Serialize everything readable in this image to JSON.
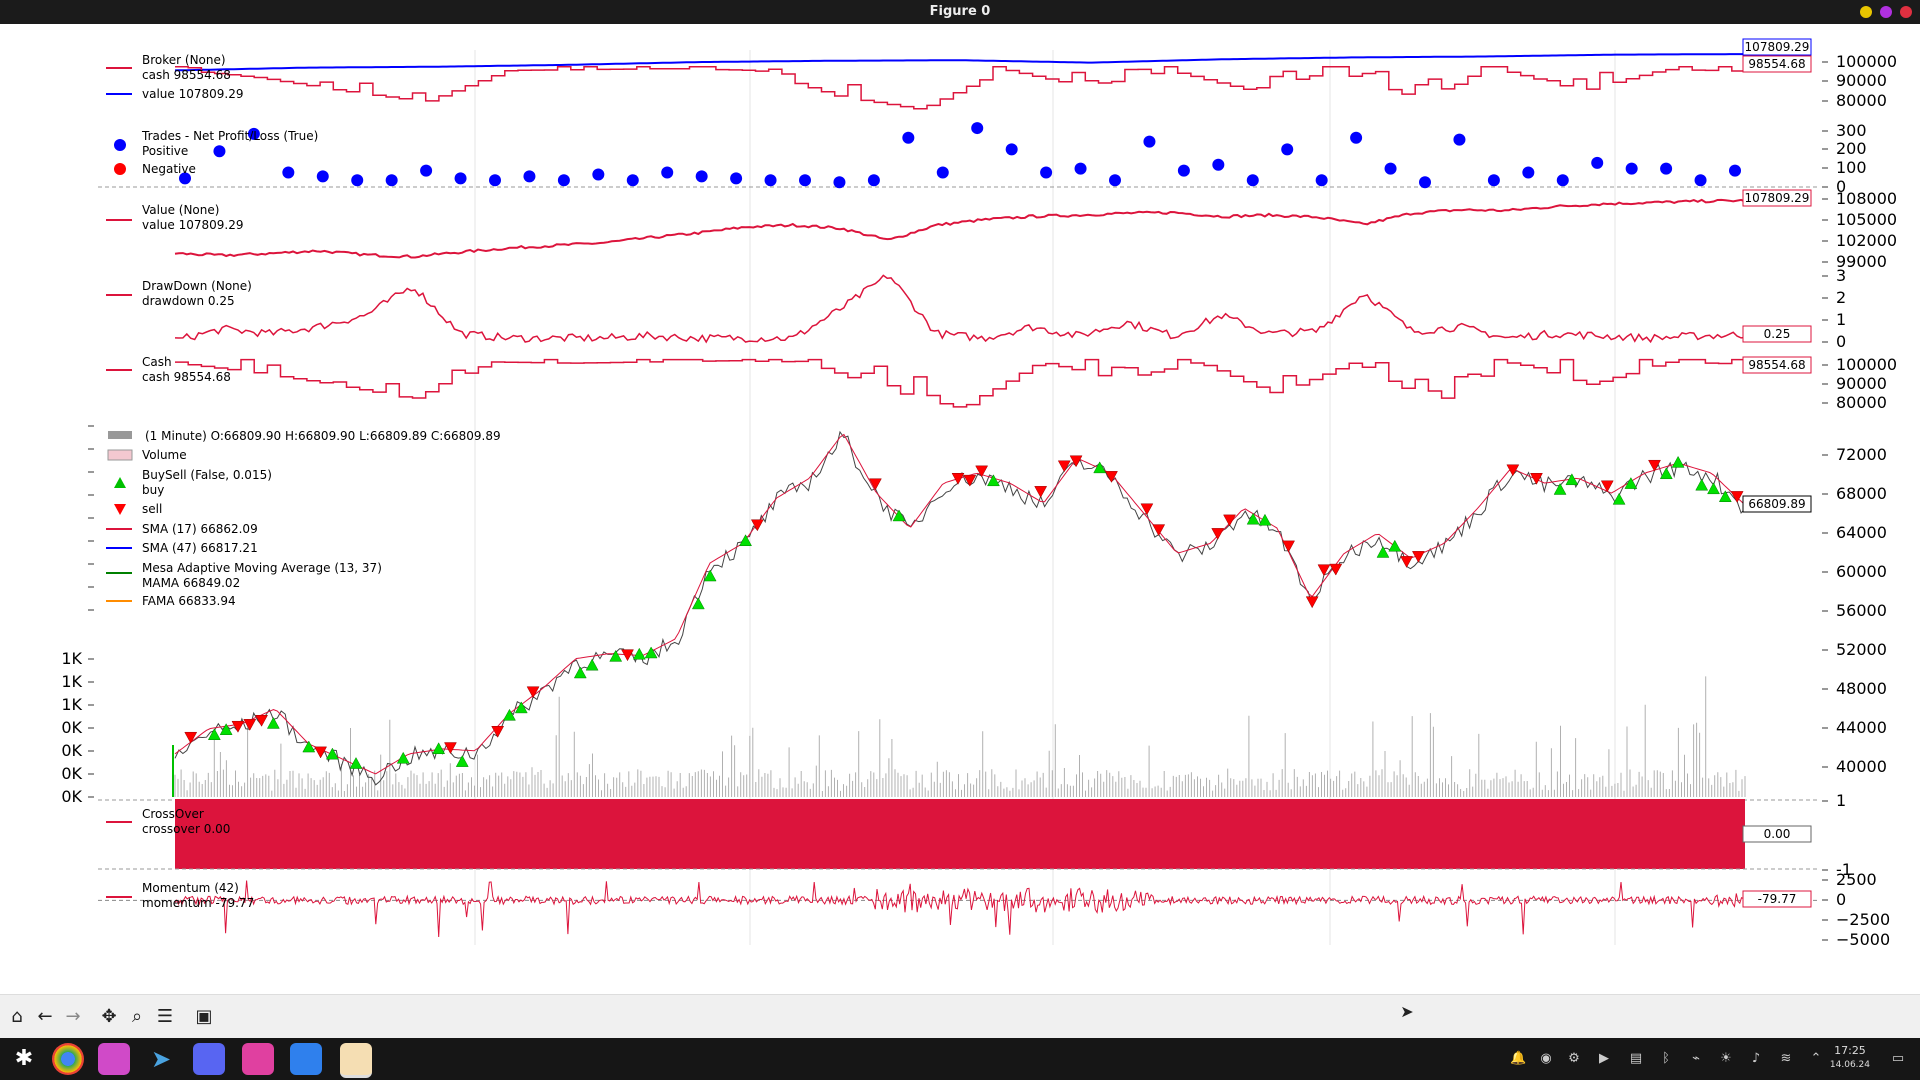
{
  "window": {
    "title": "Figure 0"
  },
  "colors": {
    "red": "#dc143c",
    "blue": "#0000ff",
    "green": "#00c000",
    "orange": "#ff8c00",
    "bg": "#ffffff"
  },
  "panels": {
    "broker": {
      "legend": [
        "Broker (None)",
        "cash 98554.68",
        "value 107809.29"
      ],
      "badges": [
        "107809.29",
        "98554.68"
      ],
      "yticks": [
        "100000",
        "90000",
        "80000"
      ]
    },
    "trades": {
      "legend": [
        "Trades - Net Profit/Loss (True)",
        "Positive",
        "Negative"
      ],
      "yticks": [
        "300",
        "200",
        "100",
        "0"
      ]
    },
    "value": {
      "legend": [
        "Value (None)",
        "value 107809.29"
      ],
      "badge": "107809.29",
      "yticks": [
        "108000",
        "105000",
        "102000",
        "99000"
      ]
    },
    "drawdown": {
      "legend": [
        "DrawDown (None)",
        "drawdown 0.25"
      ],
      "badge": "0.25",
      "yticks": [
        "3",
        "2",
        "1",
        "0"
      ]
    },
    "cash": {
      "legend": [
        "Cash",
        "cash 98554.68"
      ],
      "badge": "98554.68",
      "yticks": [
        "100000",
        "90000",
        "80000"
      ]
    },
    "price": {
      "legend": [
        "(1 Minute) O:66809.90 H:66809.90 L:66809.89 C:66809.89",
        "Volume",
        "BuySell (False, 0.015)",
        "buy",
        "sell",
        "SMA (17) 66862.09",
        "SMA (47) 66817.21",
        "Mesa Adaptive Moving Average (13, 37)",
        "MAMA 66849.02",
        "FAMA 66833.94"
      ],
      "badge": "66809.89",
      "yticks": [
        "72000",
        "68000",
        "64000",
        "60000",
        "56000",
        "52000",
        "48000",
        "44000",
        "40000"
      ],
      "vol_yticks": [
        "1K",
        "1K",
        "1K",
        "0K",
        "0K",
        "0K",
        "0K"
      ]
    },
    "crossover": {
      "legend": [
        "CrossOver",
        "crossover 0.00"
      ],
      "badge": "0.00",
      "yticks": [
        "1",
        "-1"
      ]
    },
    "momentum": {
      "legend": [
        "Momentum (42)",
        "momentum -79.77"
      ],
      "badge": "-79.77",
      "yticks": [
        "2500",
        "0",
        "−2500",
        "−5000"
      ]
    }
  },
  "chart_data": [
    {
      "type": "line",
      "title": "Broker (None)",
      "series": [
        {
          "name": "cash",
          "last": 98554.68
        },
        {
          "name": "value",
          "last": 107809.29
        }
      ],
      "ylim": [
        75000,
        110000
      ]
    },
    {
      "type": "scatter",
      "title": "Trades - Net Profit/Loss (True)",
      "series": [
        {
          "name": "Positive",
          "values": [
            50,
            190,
            280,
            80,
            60,
            40,
            40,
            90,
            50,
            40,
            60,
            40,
            70,
            40,
            80,
            60,
            50,
            40,
            40,
            30,
            40,
            260,
            80,
            310,
            200,
            80,
            100,
            40,
            240,
            90,
            120,
            40,
            200,
            40,
            260,
            100,
            30,
            250,
            40,
            80,
            40,
            130,
            100,
            100,
            40,
            90
          ]
        },
        {
          "name": "Negative",
          "values": []
        }
      ],
      "ylim": [
        0,
        300
      ]
    },
    {
      "type": "line",
      "title": "Value (None)",
      "series": [
        {
          "name": "value",
          "values": [
            99800,
            99500,
            99800,
            100200,
            99600,
            99300,
            100000,
            100600,
            101000,
            101400,
            102200,
            102900,
            103800,
            104100,
            103600,
            101800,
            104100,
            104900,
            105400,
            105600,
            105900,
            106000,
            105400,
            105600,
            105300,
            104200,
            105900,
            106400,
            106300,
            106900,
            107300,
            107500,
            107700,
            107809.29
          ]
        }
      ],
      "ylim": [
        98500,
        108500
      ]
    },
    {
      "type": "line",
      "title": "DrawDown (None)",
      "series": [
        {
          "name": "drawdown",
          "values": [
            0.0,
            0.5,
            0.3,
            0.6,
            1.1,
            2.4,
            0.3,
            0.1,
            0.1,
            0.1,
            0.2,
            0.1,
            0.1,
            0.1,
            1.4,
            2.9,
            0.3,
            0.1,
            0.6,
            0.2,
            0.8,
            0.2,
            1.1,
            0.3,
            0.4,
            2.1,
            0.4,
            0.6,
            0.1,
            0.3,
            0.2,
            0.1,
            0.2,
            0.25
          ]
        }
      ],
      "ylim": [
        0,
        3
      ]
    },
    {
      "type": "line",
      "title": "Cash",
      "series": [
        {
          "name": "cash",
          "last": 98554.68
        }
      ],
      "ylim": [
        76000,
        102000
      ]
    },
    {
      "type": "line",
      "title": "(1 Minute) O:66809.90 H:66809.90 L:66809.89 C:66809.89",
      "series": [
        {
          "name": "close",
          "values": [
            42000,
            44500,
            45000,
            46500,
            43000,
            41500,
            40000,
            42000,
            42500,
            42300,
            46000,
            48500,
            51500,
            52000,
            51800,
            53500,
            61000,
            63000,
            67500,
            69500,
            74000,
            68000,
            64500,
            69000,
            70000,
            69000,
            67000,
            71500,
            70000,
            66000,
            62000,
            63000,
            66500,
            64500,
            57500,
            62000,
            64000,
            61500,
            63000,
            66500,
            70500,
            69000,
            69500,
            68000,
            70000,
            71000,
            70000,
            66809.89
          ]
        }
      ],
      "ylim": [
        38000,
        74000
      ]
    },
    {
      "type": "bar",
      "title": "Volume",
      "ylabel": "",
      "ylim": [
        0,
        1.5
      ]
    },
    {
      "type": "area",
      "title": "CrossOver",
      "series": [
        {
          "name": "crossover",
          "last": 0.0
        }
      ],
      "ylim": [
        -1,
        1
      ]
    },
    {
      "type": "line",
      "title": "Momentum (42)",
      "series": [
        {
          "name": "momentum",
          "last": -79.77
        }
      ],
      "ylim": [
        -5500,
        3000
      ]
    }
  ]
}
